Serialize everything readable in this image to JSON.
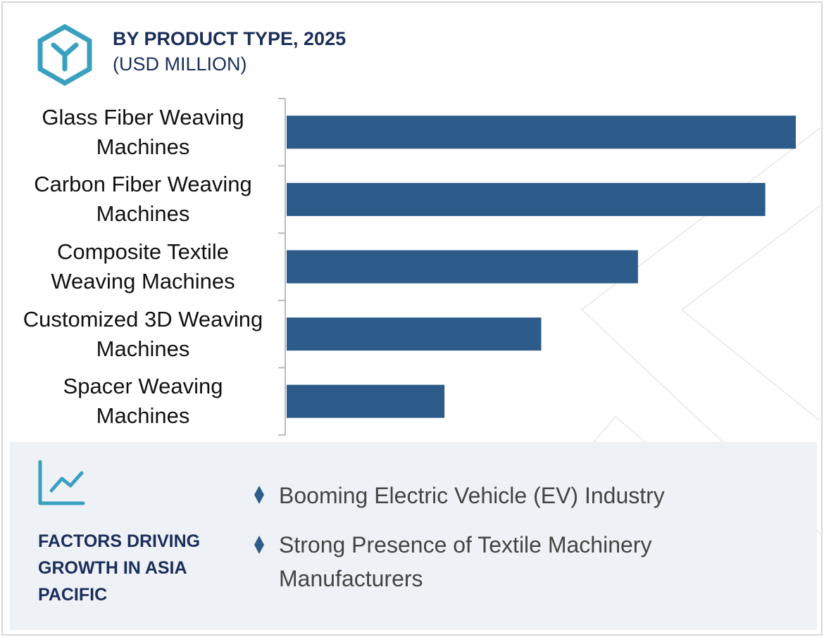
{
  "chart_data": {
    "type": "bar",
    "orientation": "horizontal",
    "title": "BY PRODUCT TYPE, 2025",
    "subtitle": "(USD MILLION)",
    "categories": [
      "Glass Fiber Weaving Machines",
      "Carbon Fiber Weaving Machines",
      "Composite Textile Weaving Machines",
      "Customized 3D Weaving Machines",
      "Spacer Weaving Machines"
    ],
    "values": [
      100,
      94,
      69,
      50,
      31
    ],
    "color": "#2d5c8a",
    "xlim": [
      0,
      100
    ]
  },
  "factors": {
    "title": "FACTORS DRIVING GROWTH IN ASIA PACIFIC",
    "items": [
      "Booming Electric Vehicle (EV) Industry",
      "Strong Presence of Textile Machinery Manufacturers"
    ]
  }
}
